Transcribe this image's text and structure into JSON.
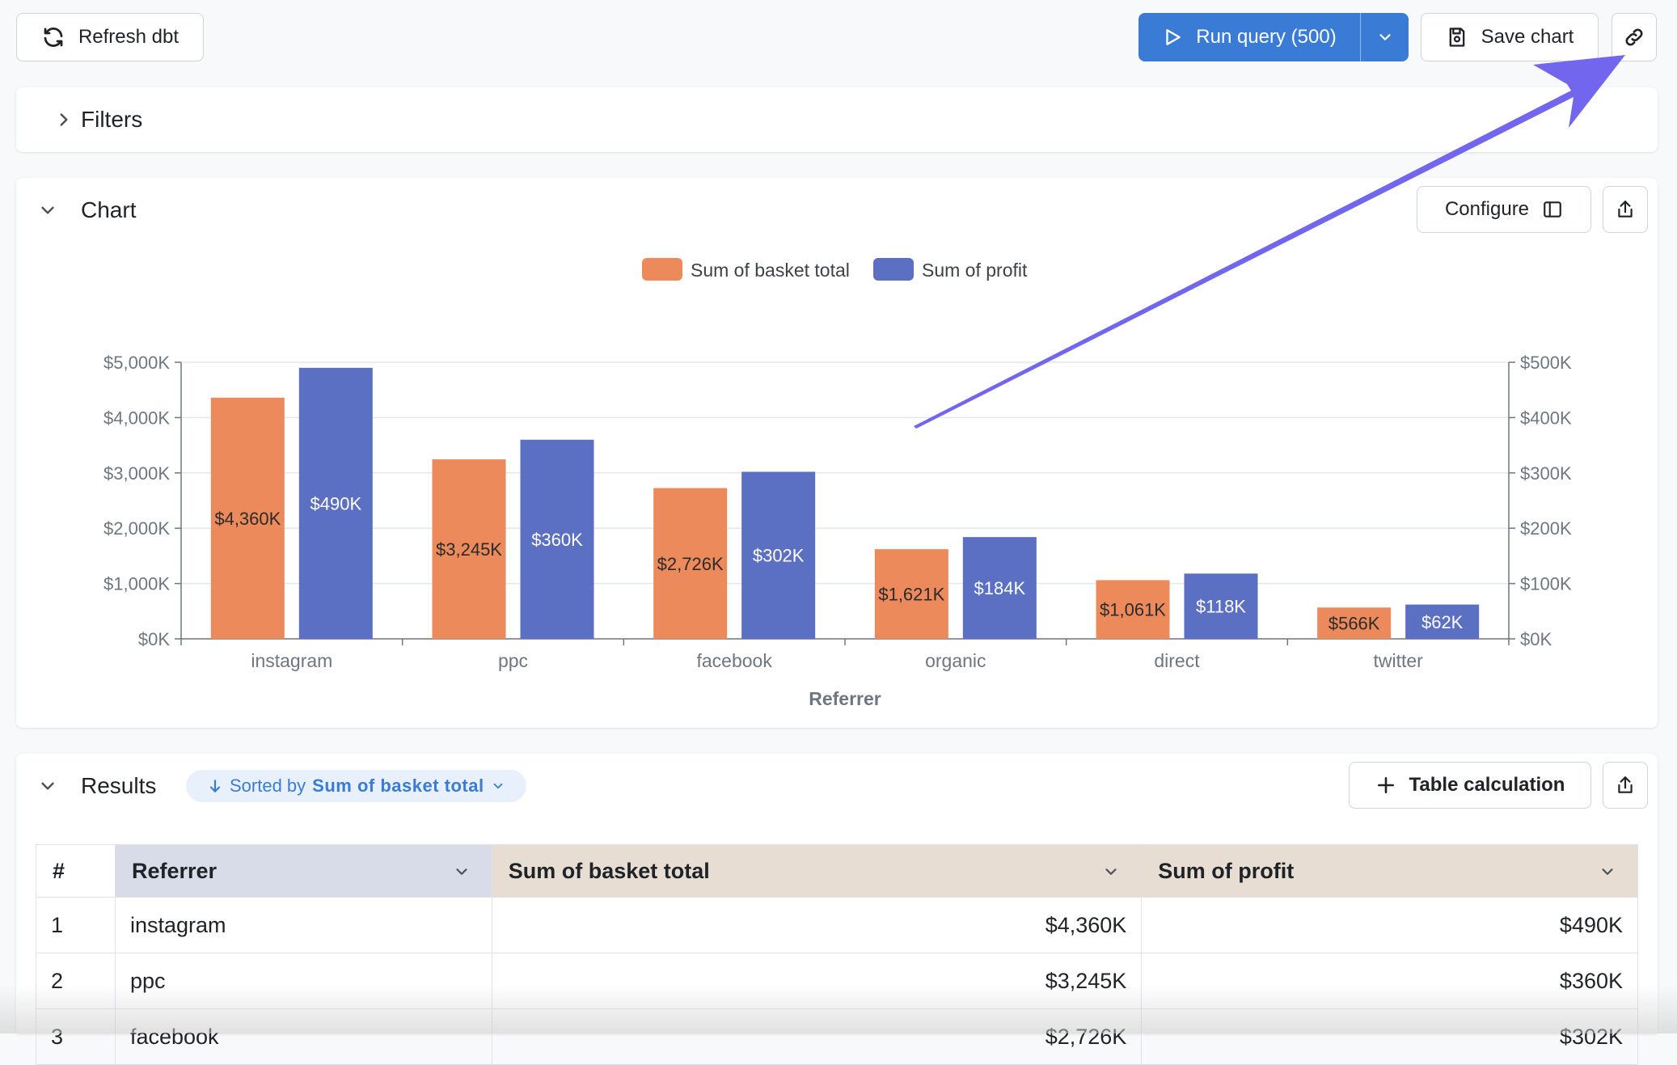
{
  "toolbar": {
    "refresh_label": "Refresh dbt",
    "run_label": "Run query (500)",
    "save_label": "Save chart"
  },
  "filters": {
    "title": "Filters"
  },
  "chart_panel": {
    "title": "Chart",
    "configure_label": "Configure"
  },
  "results": {
    "title": "Results",
    "sort_prefix": "Sorted by",
    "sort_field": "Sum of basket total",
    "table_calc_label": "Table calculation",
    "columns": [
      "#",
      "Referrer",
      "Sum of basket total",
      "Sum of profit"
    ],
    "rows": [
      [
        "1",
        "instagram",
        "$4,360K",
        "$490K"
      ],
      [
        "2",
        "ppc",
        "$3,245K",
        "$360K"
      ],
      [
        "3",
        "facebook",
        "$2,726K",
        "$302K"
      ]
    ]
  },
  "colors": {
    "accent": "#3a7bd5",
    "basket": "#ec8a5c",
    "profit": "#5b6fc3",
    "arrow": "#7266ee",
    "referrer_header": "#d7dce8",
    "metric_header": "#e7ddd3"
  },
  "chart_data": {
    "type": "bar",
    "categories": [
      "instagram",
      "ppc",
      "facebook",
      "organic",
      "direct",
      "twitter"
    ],
    "series": [
      {
        "name": "Sum of basket total",
        "axis": "left",
        "values": [
          4360,
          3245,
          2726,
          1621,
          1061,
          566
        ],
        "labels": [
          "$4,360K",
          "$3,245K",
          "$2,726K",
          "$1,621K",
          "$1,061K",
          "$566K"
        ]
      },
      {
        "name": "Sum of profit",
        "axis": "right",
        "values": [
          490,
          360,
          302,
          184,
          118,
          62
        ],
        "labels": [
          "$490K",
          "$360K",
          "$302K",
          "$184K",
          "$118K",
          "$62K"
        ]
      }
    ],
    "xlabel": "Referrer",
    "ylabel": "",
    "ylim_left": [
      0,
      5000
    ],
    "ylim_right": [
      0,
      500
    ],
    "left_ticks": [
      "$0K",
      "$1,000K",
      "$2,000K",
      "$3,000K",
      "$4,000K",
      "$5,000K"
    ],
    "right_ticks": [
      "$0K",
      "$100K",
      "$200K",
      "$300K",
      "$400K",
      "$500K"
    ],
    "legend_position": "top",
    "grid": true
  }
}
